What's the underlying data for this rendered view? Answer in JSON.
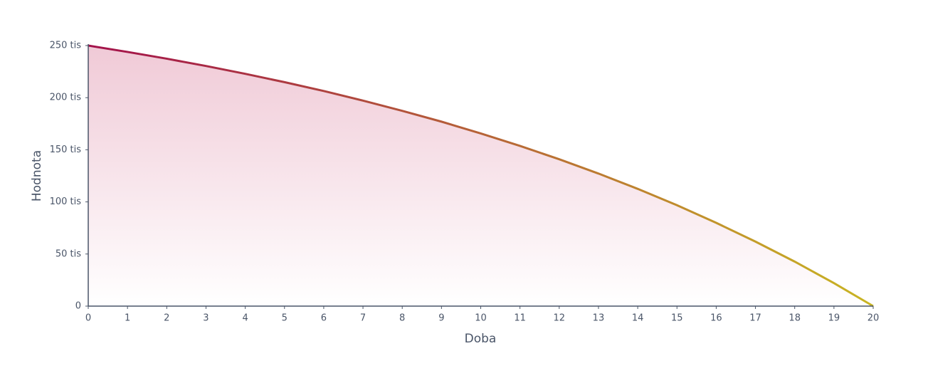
{
  "chart_data": {
    "type": "area",
    "x_label": "Doba",
    "y_label": "Hodnota",
    "x": [
      0,
      1,
      2,
      3,
      4,
      5,
      6,
      7,
      8,
      9,
      10,
      11,
      12,
      13,
      14,
      15,
      16,
      17,
      18,
      19,
      20
    ],
    "values": [
      250000,
      243900,
      237400,
      230400,
      222900,
      214900,
      206400,
      197200,
      187400,
      177000,
      165700,
      153700,
      140900,
      127200,
      112500,
      96800,
      79900,
      61900,
      42700,
      22100,
      0
    ],
    "colors": [
      "#a3114b",
      "#c9b523"
    ],
    "fill_color": "#c9406e",
    "xlim": [
      0,
      20
    ],
    "xticks": [
      0,
      1,
      2,
      3,
      4,
      5,
      6,
      7,
      8,
      9,
      10,
      11,
      12,
      13,
      14,
      15,
      16,
      17,
      18,
      19,
      20
    ],
    "ylim": [
      0,
      250000
    ],
    "yticks": [
      0,
      {
        "value": 50000,
        "label": "50 tis"
      },
      {
        "value": 100000,
        "label": "100 tis"
      },
      {
        "value": 150000,
        "label": "150 tis"
      },
      {
        "value": 200000,
        "label": "200 tis"
      },
      {
        "value": 250000,
        "label": "250 tis"
      }
    ],
    "grid": false
  }
}
